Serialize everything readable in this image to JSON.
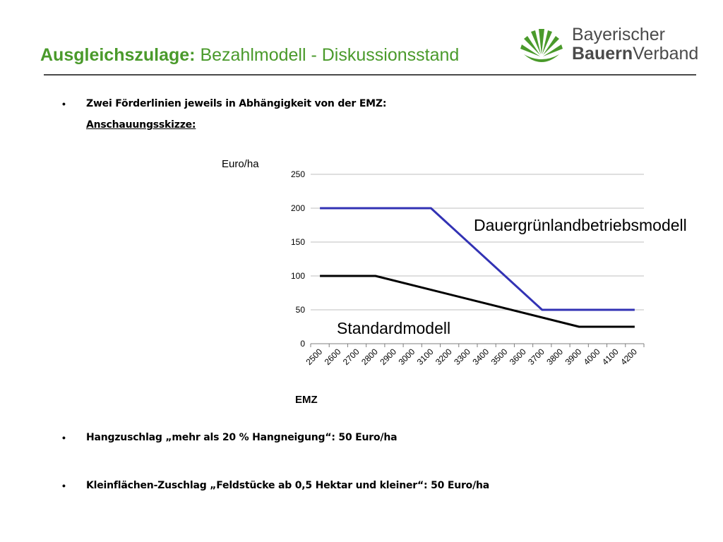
{
  "header": {
    "title_bold": "Ausgleichszulage:",
    "title_rest": " Bezahlmodell - Diskussionsstand",
    "logo_line1": "Bayerischer",
    "logo_line2_bold": "Bauern",
    "logo_line2_rest": "Verband"
  },
  "bullets": {
    "b1_line1": "Zwei Förderlinien jeweils in Abhängigkeit von der EMZ:",
    "b1_line2": "Anschauungsskizze:",
    "b2": "Hangzuschlag „mehr als 20 % Hangneigung“: 50 Euro/ha",
    "b3": "Kleinflächen-Zuschlag „Feldstücke ab 0,5 Hektar und kleiner“: 50 Euro/ha",
    "bullet_glyph": "•"
  },
  "colors": {
    "title_green": "#4a9a2b",
    "blue_series": "#3232b4",
    "black_series": "#000000",
    "grid": "#bfbfbf"
  },
  "chart_data": {
    "type": "line",
    "ylabel": "Euro/ha",
    "xlabel": "EMZ",
    "x": [
      2500,
      2600,
      2700,
      2800,
      2900,
      3000,
      3100,
      3200,
      3300,
      3400,
      3500,
      3600,
      3700,
      3800,
      3900,
      4000,
      4100,
      4200
    ],
    "ylim": [
      0,
      250
    ],
    "yticks": [
      0,
      50,
      100,
      150,
      200,
      250
    ],
    "grid": true,
    "series": [
      {
        "name": "Dauergrünlandbetriebsmodell",
        "color": "#3232b4",
        "points": [
          [
            2500,
            200
          ],
          [
            3100,
            200
          ],
          [
            3700,
            50
          ],
          [
            4200,
            50
          ]
        ]
      },
      {
        "name": "Standardmodell",
        "color": "#000000",
        "points": [
          [
            2500,
            100
          ],
          [
            2800,
            100
          ],
          [
            3900,
            25
          ],
          [
            4200,
            25
          ]
        ]
      }
    ]
  }
}
